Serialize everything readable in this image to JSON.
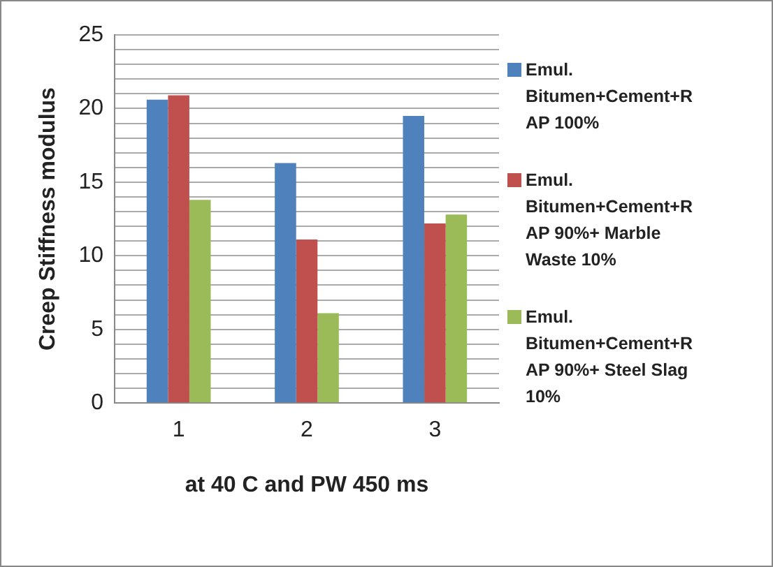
{
  "chart_data": {
    "type": "bar",
    "xlabel": "at 40 C and PW 450 ms",
    "ylabel": "Creep Stiffness modulus",
    "categories": [
      "1",
      "2",
      "3"
    ],
    "series": [
      {
        "name": "Emul. Bitumen+Cement+RAP 100%",
        "color": "#4f81bd",
        "values": [
          20.6,
          16.3,
          19.5
        ]
      },
      {
        "name": "Emul. Bitumen+Cement+RAP 90%+ Marble Waste 10%",
        "color": "#c0504d",
        "values": [
          20.9,
          11.1,
          12.2
        ]
      },
      {
        "name": "Emul. Bitumen+Cement+RAP 90%+ Steel Slag 10%",
        "color": "#9bbb59",
        "values": [
          13.8,
          6.1,
          12.8
        ]
      }
    ],
    "ylim": [
      0,
      25
    ],
    "yticks": [
      0,
      {
        "value": 1,
        "label": null
      },
      {
        "value": 2,
        "label": null
      },
      {
        "value": 3,
        "label": null
      },
      {
        "value": 4,
        "label": null
      },
      5,
      {
        "value": 6,
        "label": null
      },
      {
        "value": 7,
        "label": null
      },
      {
        "value": 8,
        "label": null
      },
      {
        "value": 9,
        "label": null
      },
      10,
      {
        "value": 11,
        "label": null
      },
      {
        "value": 12,
        "label": null
      },
      {
        "value": 13,
        "label": null
      },
      {
        "value": 14,
        "label": null
      },
      15,
      {
        "value": 16,
        "label": null
      },
      {
        "value": 17,
        "label": null
      },
      {
        "value": 18,
        "label": null
      },
      {
        "value": 19,
        "label": null
      },
      20,
      {
        "value": 21,
        "label": null
      },
      {
        "value": 22,
        "label": null
      },
      {
        "value": 23,
        "label": null
      },
      {
        "value": 24,
        "label": null
      },
      25
    ],
    "grid": "y",
    "legend": "right"
  }
}
